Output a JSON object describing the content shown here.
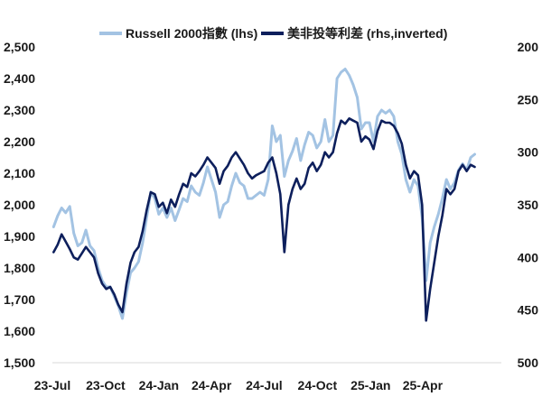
{
  "chart_data": {
    "type": "line",
    "legend_position": "top",
    "grid": false,
    "x_ticks": [
      "23-Jul",
      "23-Oct",
      "24-Jan",
      "24-Apr",
      "24-Jul",
      "24-Oct",
      "25-Jan",
      "25-Apr"
    ],
    "y_left": {
      "min": 1500,
      "max": 2500,
      "ticks": [
        "1,500",
        "1,600",
        "1,700",
        "1,800",
        "1,900",
        "2,000",
        "2,100",
        "2,200",
        "2,300",
        "2,400",
        "2,500"
      ]
    },
    "y_right": {
      "min": 200,
      "max": 500,
      "inverted": true,
      "ticks": [
        "200",
        "250",
        "300",
        "350",
        "400",
        "450",
        "500"
      ]
    },
    "series": [
      {
        "name": "Russell 2000指數 (lhs)",
        "axis": "left",
        "color": "#a3c3e3",
        "points": [
          [
            "2023-07-03",
            1930
          ],
          [
            "2023-07-10",
            1965
          ],
          [
            "2023-07-17",
            1990
          ],
          [
            "2023-07-24",
            1975
          ],
          [
            "2023-07-31",
            1995
          ],
          [
            "2023-08-07",
            1910
          ],
          [
            "2023-08-14",
            1870
          ],
          [
            "2023-08-21",
            1880
          ],
          [
            "2023-08-28",
            1920
          ],
          [
            "2023-09-04",
            1870
          ],
          [
            "2023-09-11",
            1855
          ],
          [
            "2023-09-18",
            1800
          ],
          [
            "2023-09-25",
            1760
          ],
          [
            "2023-10-02",
            1740
          ],
          [
            "2023-10-09",
            1740
          ],
          [
            "2023-10-16",
            1710
          ],
          [
            "2023-10-23",
            1680
          ],
          [
            "2023-10-30",
            1640
          ],
          [
            "2023-11-06",
            1720
          ],
          [
            "2023-11-13",
            1785
          ],
          [
            "2023-11-20",
            1800
          ],
          [
            "2023-11-27",
            1820
          ],
          [
            "2023-12-04",
            1880
          ],
          [
            "2023-12-11",
            1960
          ],
          [
            "2023-12-18",
            2040
          ],
          [
            "2023-12-25",
            2020
          ],
          [
            "2024-01-01",
            1970
          ],
          [
            "2024-01-08",
            1990
          ],
          [
            "2024-01-15",
            1960
          ],
          [
            "2024-01-22",
            1990
          ],
          [
            "2024-01-29",
            1950
          ],
          [
            "2024-02-05",
            1985
          ],
          [
            "2024-02-12",
            2020
          ],
          [
            "2024-02-19",
            2010
          ],
          [
            "2024-02-26",
            2060
          ],
          [
            "2024-03-04",
            2040
          ],
          [
            "2024-03-11",
            2030
          ],
          [
            "2024-03-18",
            2070
          ],
          [
            "2024-03-25",
            2120
          ],
          [
            "2024-04-01",
            2080
          ],
          [
            "2024-04-08",
            2040
          ],
          [
            "2024-04-15",
            1960
          ],
          [
            "2024-04-22",
            2000
          ],
          [
            "2024-04-29",
            2010
          ],
          [
            "2024-05-06",
            2060
          ],
          [
            "2024-05-13",
            2100
          ],
          [
            "2024-05-20",
            2070
          ],
          [
            "2024-05-27",
            2060
          ],
          [
            "2024-06-03",
            2020
          ],
          [
            "2024-06-10",
            2020
          ],
          [
            "2024-06-17",
            2030
          ],
          [
            "2024-06-24",
            2040
          ],
          [
            "2024-07-01",
            2030
          ],
          [
            "2024-07-08",
            2080
          ],
          [
            "2024-07-15",
            2250
          ],
          [
            "2024-07-22",
            2200
          ],
          [
            "2024-07-29",
            2220
          ],
          [
            "2024-08-05",
            2090
          ],
          [
            "2024-08-12",
            2140
          ],
          [
            "2024-08-19",
            2170
          ],
          [
            "2024-08-26",
            2210
          ],
          [
            "2024-09-02",
            2140
          ],
          [
            "2024-09-09",
            2190
          ],
          [
            "2024-09-16",
            2230
          ],
          [
            "2024-09-23",
            2220
          ],
          [
            "2024-09-30",
            2180
          ],
          [
            "2024-10-07",
            2200
          ],
          [
            "2024-10-14",
            2270
          ],
          [
            "2024-10-21",
            2200
          ],
          [
            "2024-10-28",
            2220
          ],
          [
            "2024-11-04",
            2400
          ],
          [
            "2024-11-11",
            2420
          ],
          [
            "2024-11-18",
            2430
          ],
          [
            "2024-11-25",
            2410
          ],
          [
            "2024-12-02",
            2380
          ],
          [
            "2024-12-09",
            2340
          ],
          [
            "2024-12-16",
            2240
          ],
          [
            "2024-12-23",
            2260
          ],
          [
            "2024-12-30",
            2260
          ],
          [
            "2025-01-06",
            2200
          ],
          [
            "2025-01-13",
            2280
          ],
          [
            "2025-01-20",
            2300
          ],
          [
            "2025-01-27",
            2290
          ],
          [
            "2025-02-03",
            2300
          ],
          [
            "2025-02-10",
            2280
          ],
          [
            "2025-02-17",
            2200
          ],
          [
            "2025-02-24",
            2160
          ],
          [
            "2025-03-03",
            2080
          ],
          [
            "2025-03-10",
            2040
          ],
          [
            "2025-03-17",
            2080
          ],
          [
            "2025-03-24",
            2060
          ],
          [
            "2025-03-31",
            1960
          ],
          [
            "2025-04-07",
            1760
          ],
          [
            "2025-04-14",
            1880
          ],
          [
            "2025-04-21",
            1930
          ],
          [
            "2025-04-28",
            1970
          ],
          [
            "2025-05-05",
            2020
          ],
          [
            "2025-05-12",
            2080
          ],
          [
            "2025-05-19",
            2050
          ],
          [
            "2025-05-26",
            2070
          ],
          [
            "2025-06-02",
            2110
          ],
          [
            "2025-06-09",
            2130
          ],
          [
            "2025-06-16",
            2110
          ],
          [
            "2025-06-23",
            2150
          ],
          [
            "2025-06-30",
            2160
          ]
        ]
      },
      {
        "name": "美非投等利差 (rhs,inverted)",
        "axis": "right",
        "color": "#0d1f5c",
        "points": [
          [
            "2023-07-03",
            395
          ],
          [
            "2023-07-10",
            388
          ],
          [
            "2023-07-17",
            378
          ],
          [
            "2023-07-24",
            385
          ],
          [
            "2023-07-31",
            392
          ],
          [
            "2023-08-07",
            400
          ],
          [
            "2023-08-14",
            402
          ],
          [
            "2023-08-21",
            396
          ],
          [
            "2023-08-28",
            390
          ],
          [
            "2023-09-04",
            395
          ],
          [
            "2023-09-11",
            400
          ],
          [
            "2023-09-18",
            415
          ],
          [
            "2023-09-25",
            425
          ],
          [
            "2023-10-02",
            430
          ],
          [
            "2023-10-09",
            428
          ],
          [
            "2023-10-16",
            435
          ],
          [
            "2023-10-23",
            445
          ],
          [
            "2023-10-30",
            452
          ],
          [
            "2023-11-06",
            425
          ],
          [
            "2023-11-13",
            405
          ],
          [
            "2023-11-20",
            395
          ],
          [
            "2023-11-27",
            390
          ],
          [
            "2023-12-04",
            375
          ],
          [
            "2023-12-11",
            355
          ],
          [
            "2023-12-18",
            338
          ],
          [
            "2023-12-25",
            340
          ],
          [
            "2024-01-01",
            352
          ],
          [
            "2024-01-08",
            348
          ],
          [
            "2024-01-15",
            358
          ],
          [
            "2024-01-22",
            345
          ],
          [
            "2024-01-29",
            352
          ],
          [
            "2024-02-05",
            340
          ],
          [
            "2024-02-12",
            330
          ],
          [
            "2024-02-19",
            333
          ],
          [
            "2024-02-26",
            320
          ],
          [
            "2024-03-04",
            323
          ],
          [
            "2024-03-11",
            318
          ],
          [
            "2024-03-18",
            312
          ],
          [
            "2024-03-25",
            305
          ],
          [
            "2024-04-01",
            310
          ],
          [
            "2024-04-08",
            315
          ],
          [
            "2024-04-15",
            330
          ],
          [
            "2024-04-22",
            318
          ],
          [
            "2024-04-29",
            313
          ],
          [
            "2024-05-06",
            305
          ],
          [
            "2024-05-13",
            300
          ],
          [
            "2024-05-20",
            306
          ],
          [
            "2024-05-27",
            312
          ],
          [
            "2024-06-03",
            320
          ],
          [
            "2024-06-10",
            325
          ],
          [
            "2024-06-17",
            322
          ],
          [
            "2024-06-24",
            320
          ],
          [
            "2024-07-01",
            318
          ],
          [
            "2024-07-08",
            310
          ],
          [
            "2024-07-15",
            305
          ],
          [
            "2024-07-22",
            320
          ],
          [
            "2024-07-29",
            340
          ],
          [
            "2024-08-05",
            395
          ],
          [
            "2024-08-12",
            350
          ],
          [
            "2024-08-19",
            335
          ],
          [
            "2024-08-26",
            325
          ],
          [
            "2024-09-02",
            335
          ],
          [
            "2024-09-09",
            330
          ],
          [
            "2024-09-16",
            315
          ],
          [
            "2024-09-23",
            310
          ],
          [
            "2024-09-30",
            318
          ],
          [
            "2024-10-07",
            312
          ],
          [
            "2024-10-14",
            300
          ],
          [
            "2024-10-21",
            305
          ],
          [
            "2024-10-28",
            300
          ],
          [
            "2024-11-04",
            282
          ],
          [
            "2024-11-11",
            270
          ],
          [
            "2024-11-18",
            273
          ],
          [
            "2024-11-25",
            268
          ],
          [
            "2024-12-02",
            270
          ],
          [
            "2024-12-09",
            272
          ],
          [
            "2024-12-16",
            290
          ],
          [
            "2024-12-23",
            285
          ],
          [
            "2024-12-30",
            288
          ],
          [
            "2025-01-06",
            297
          ],
          [
            "2025-01-13",
            280
          ],
          [
            "2025-01-20",
            270
          ],
          [
            "2025-01-27",
            272
          ],
          [
            "2025-02-03",
            272
          ],
          [
            "2025-02-10",
            275
          ],
          [
            "2025-02-17",
            282
          ],
          [
            "2025-02-24",
            292
          ],
          [
            "2025-03-03",
            312
          ],
          [
            "2025-03-10",
            325
          ],
          [
            "2025-03-17",
            318
          ],
          [
            "2025-03-24",
            322
          ],
          [
            "2025-03-31",
            350
          ],
          [
            "2025-04-07",
            460
          ],
          [
            "2025-04-14",
            430
          ],
          [
            "2025-04-21",
            405
          ],
          [
            "2025-04-28",
            380
          ],
          [
            "2025-05-05",
            360
          ],
          [
            "2025-05-12",
            335
          ],
          [
            "2025-05-19",
            340
          ],
          [
            "2025-05-26",
            335
          ],
          [
            "2025-06-02",
            318
          ],
          [
            "2025-06-09",
            312
          ],
          [
            "2025-06-16",
            318
          ],
          [
            "2025-06-23",
            312
          ],
          [
            "2025-06-30",
            314
          ]
        ]
      }
    ]
  }
}
